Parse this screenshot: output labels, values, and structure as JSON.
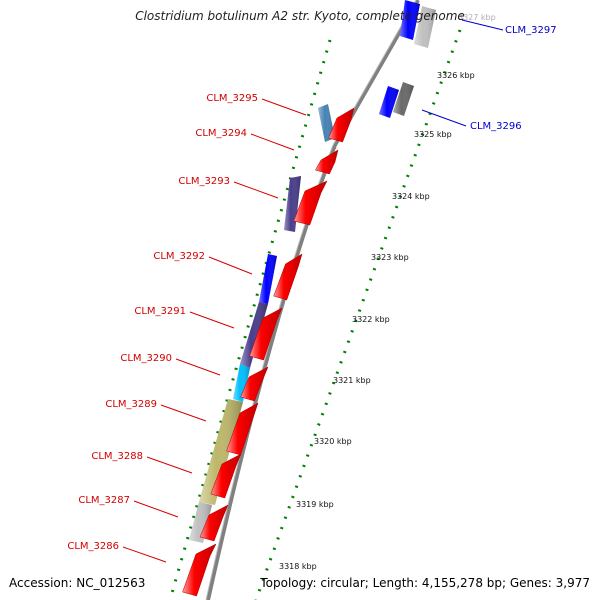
{
  "title": "Clostridium botulinum A2 str. Kyoto, complete genome",
  "accession": "Accession: NC_012563",
  "topology": "Topology: circular; Length: 4,155,278 bp; Genes: 3,977",
  "colors": {
    "cds_forward": "#ff0000",
    "label_red": "#d40000",
    "label_blue": "#0000cc",
    "backbone": "#808080",
    "tick_dots": "#008000"
  },
  "scale_labels": [
    "3327 kbp",
    "3326 kbp",
    "3325 kbp",
    "3324 kbp",
    "3323 kbp",
    "3322 kbp",
    "3321 kbp",
    "3320 kbp",
    "3319 kbp",
    "3318 kbp"
  ],
  "genes": [
    {
      "name": "CLM_3297",
      "color": "#0000cc"
    },
    {
      "name": "CLM_3296",
      "color": "#0000cc"
    },
    {
      "name": "CLM_3295",
      "color": "#d40000"
    },
    {
      "name": "CLM_3294",
      "color": "#d40000"
    },
    {
      "name": "CLM_3293",
      "color": "#d40000"
    },
    {
      "name": "CLM_3292",
      "color": "#d40000"
    },
    {
      "name": "CLM_3291",
      "color": "#d40000"
    },
    {
      "name": "CLM_3290",
      "color": "#d40000"
    },
    {
      "name": "CLM_3289",
      "color": "#d40000"
    },
    {
      "name": "CLM_3288",
      "color": "#d40000"
    },
    {
      "name": "CLM_3287",
      "color": "#d40000"
    },
    {
      "name": "CLM_3286",
      "color": "#d40000"
    }
  ],
  "cog_colors": [
    "#4682b4",
    "#483d8b",
    "#0000ff",
    "#00bfff",
    "#bdb76b",
    "#c0c0c0",
    "#696969"
  ]
}
